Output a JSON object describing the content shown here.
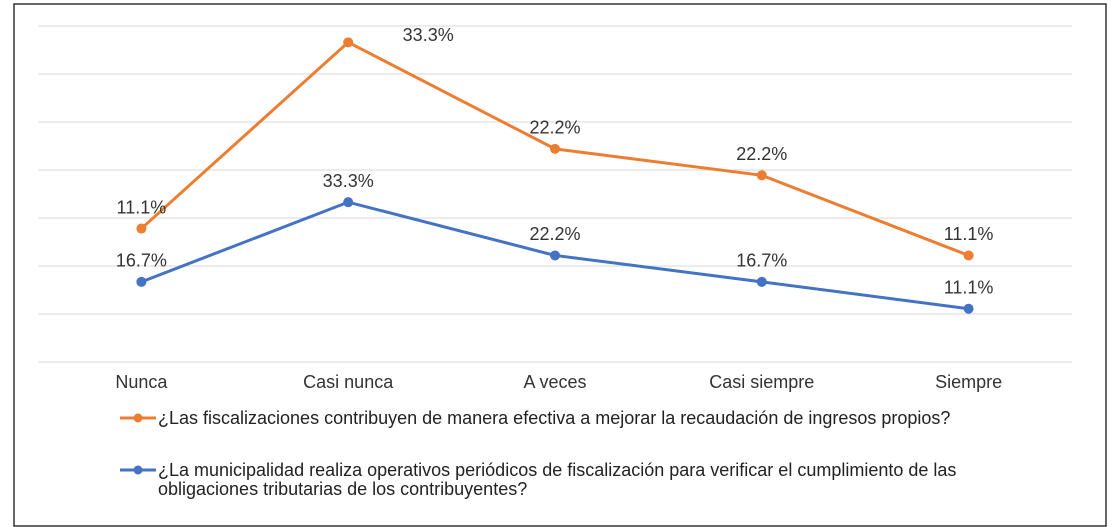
{
  "chart_data": {
    "type": "line",
    "stacked": true,
    "categories": [
      "Nunca",
      "Casi nunca",
      "A veces",
      "Casi siempre",
      "Siempre"
    ],
    "series": [
      {
        "name": "¿La municipalidad realiza operativos periódicos de fiscalización para verificar el cumplimiento de las obligaciones tributarias de los contribuyentes?",
        "color": "#4472c4",
        "values": [
          16.7,
          33.3,
          22.2,
          16.7,
          11.1
        ],
        "value_labels": [
          "16.7%",
          "33.3%",
          "22.2%",
          "16.7%",
          "11.1%"
        ]
      },
      {
        "name": "¿Las fiscalizaciones contribuyen de manera efectiva a mejorar la recaudación de ingresos propios?",
        "color": "#ed7d31",
        "values": [
          11.1,
          33.3,
          22.2,
          22.2,
          11.1
        ],
        "value_labels": [
          "11.1%",
          "33.3%",
          "22.2%",
          "22.2%",
          "11.1%"
        ]
      }
    ],
    "ylim": [
      0,
      70
    ],
    "yticks": [
      0,
      10,
      20,
      30,
      40,
      50,
      60,
      70
    ],
    "show_ytick_labels": false,
    "grid": true,
    "legend": "bottom"
  }
}
